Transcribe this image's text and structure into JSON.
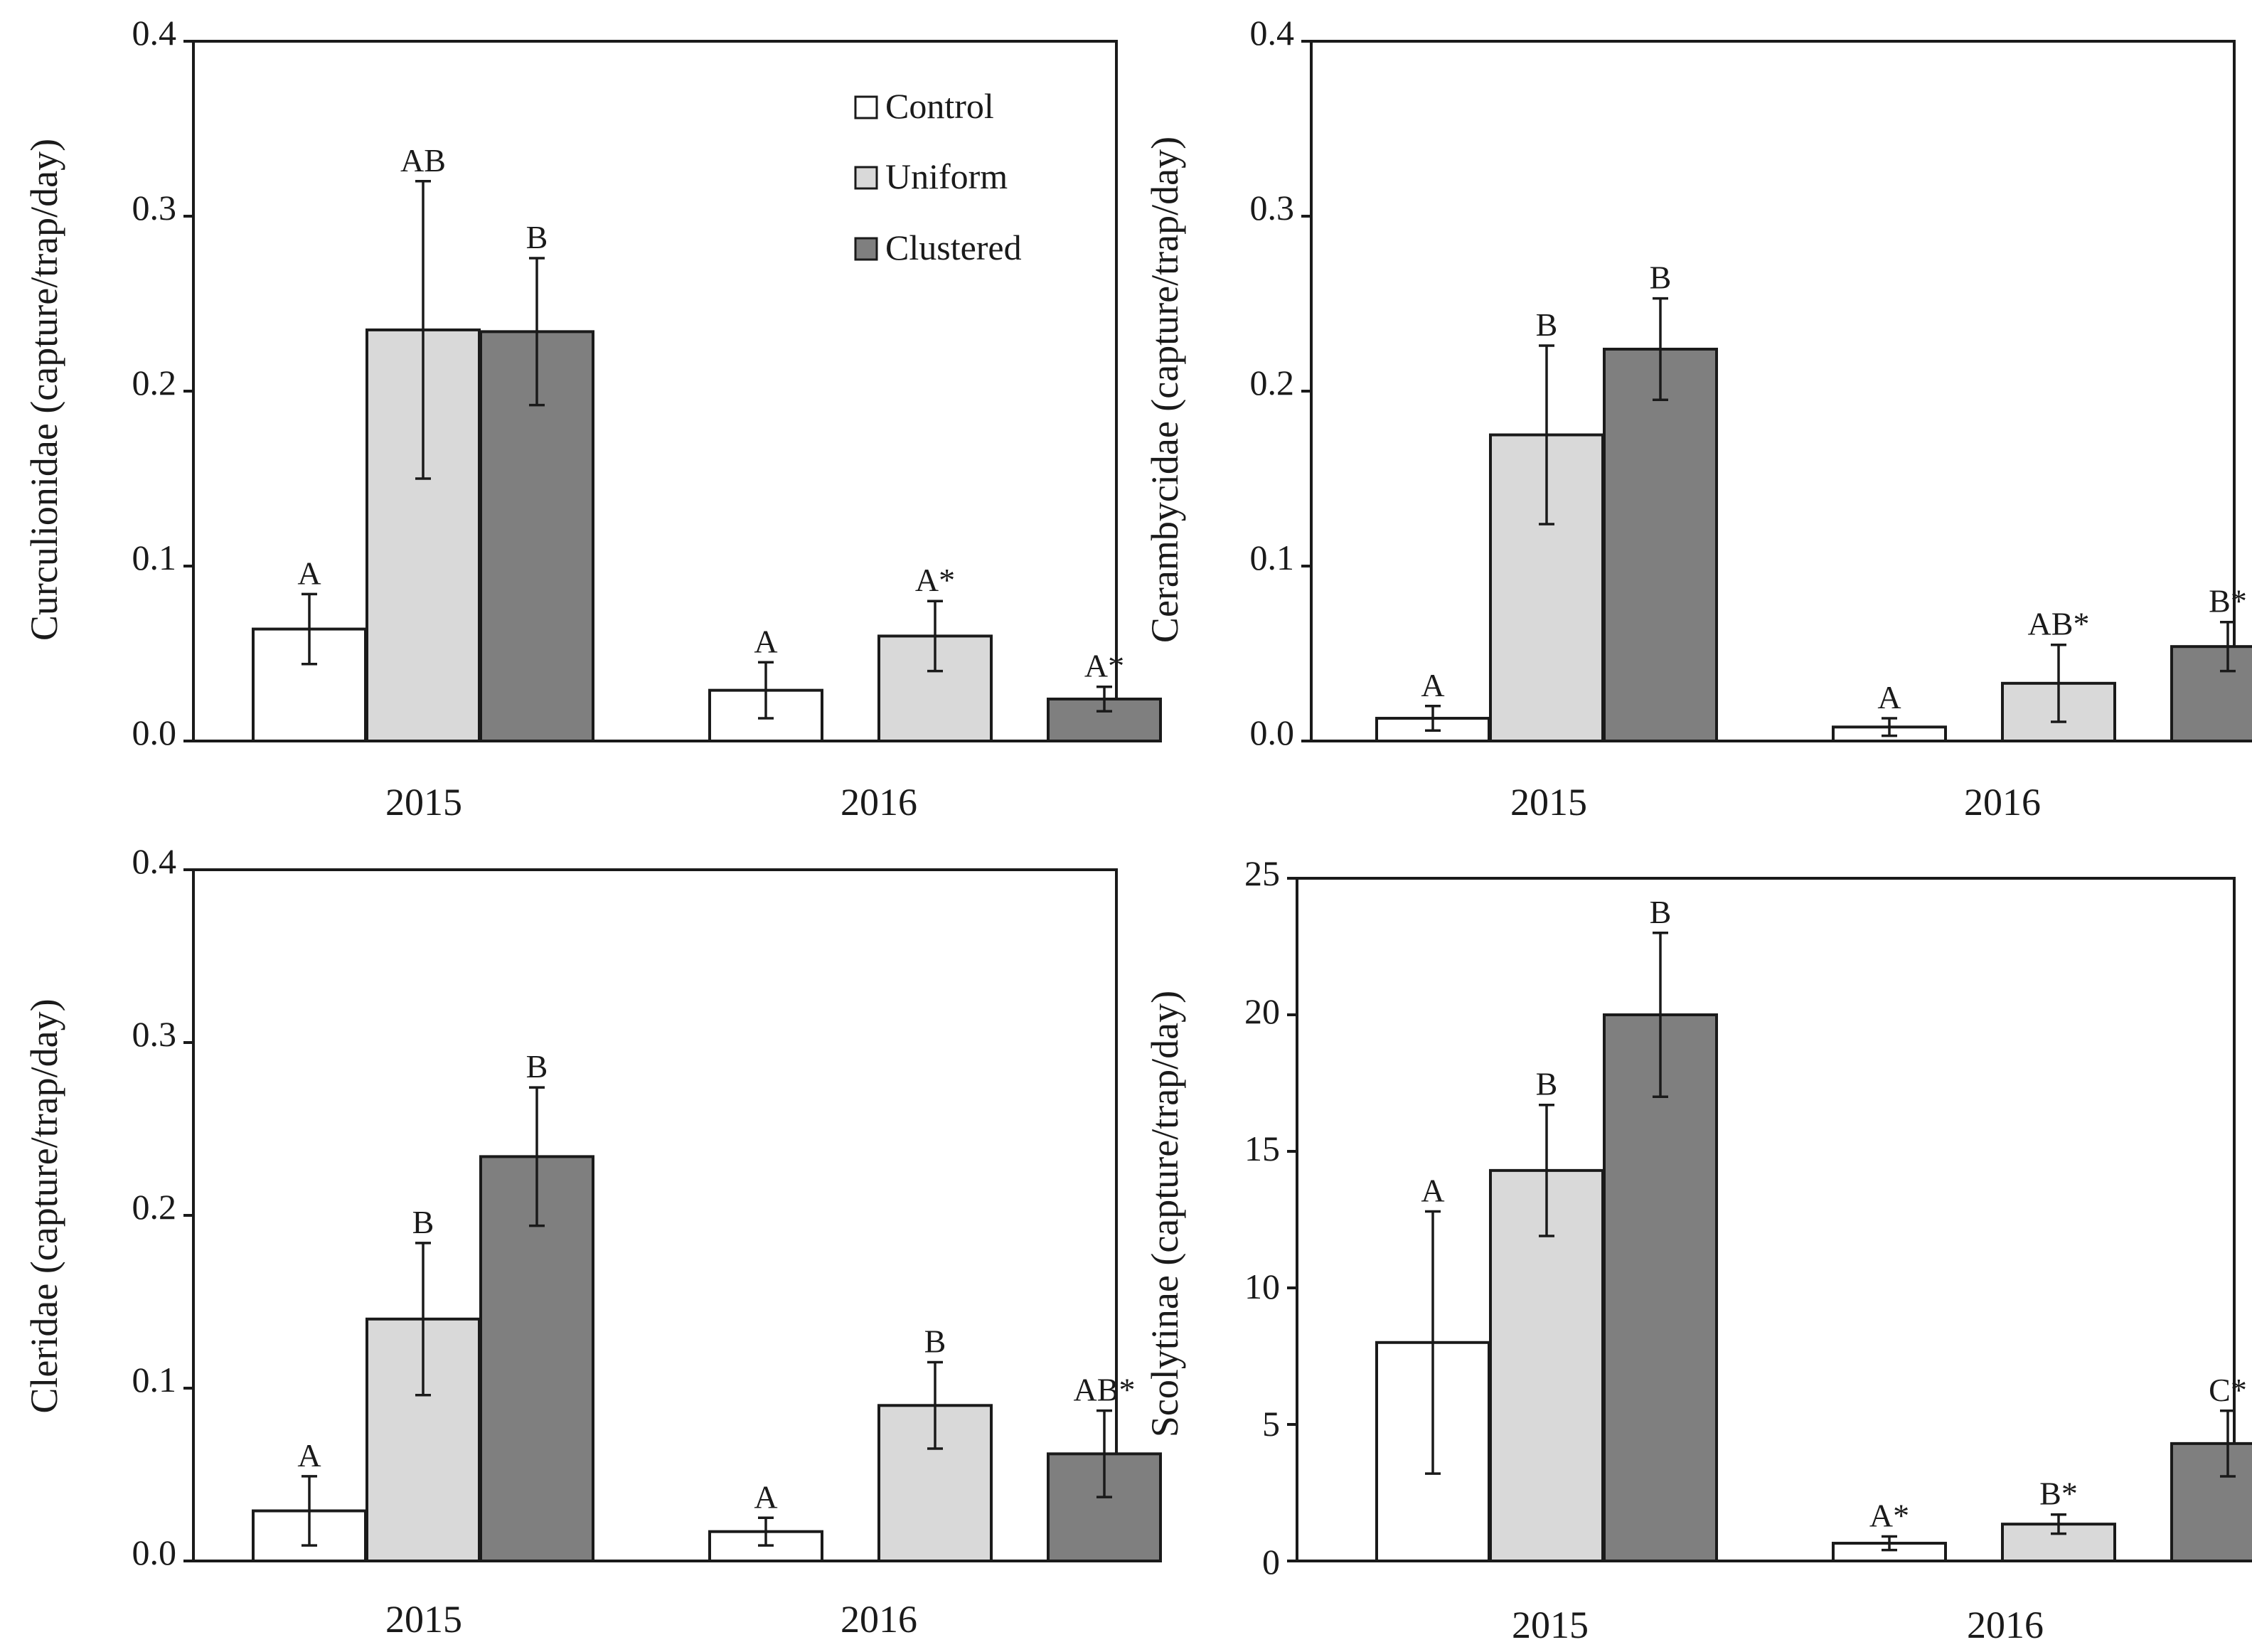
{
  "colors": {
    "control": "#ffffff",
    "uniform": "#d9d9d9",
    "clustered": "#7f7f7f",
    "stroke": "#1a1a1a"
  },
  "legend": {
    "entries": [
      {
        "label": "Control",
        "series": "control"
      },
      {
        "label": "Uniform",
        "series": "uniform"
      },
      {
        "label": "Clustered",
        "series": "clustered"
      }
    ]
  },
  "chart_data": [
    {
      "type": "bar",
      "panel": "top-left",
      "ylabel": "Curculionidae  (capture/trap/day)",
      "categories": [
        "2015",
        "2016"
      ],
      "ylim": [
        0,
        0.4
      ],
      "yticks": [
        "0.0",
        "0.1",
        "0.2",
        "0.3",
        "0.4"
      ],
      "legend_position": "top-right",
      "series": [
        {
          "name": "Control",
          "key": "control",
          "values": [
            0.064,
            0.029
          ],
          "errors": [
            0.02,
            0.016
          ],
          "labels": [
            "A",
            "A"
          ]
        },
        {
          "name": "Uniform",
          "key": "uniform",
          "values": [
            0.235,
            0.06
          ],
          "errors": [
            0.085,
            0.02
          ],
          "labels": [
            "AB",
            "A*"
          ]
        },
        {
          "name": "Clustered",
          "key": "clustered",
          "values": [
            0.234,
            0.024
          ],
          "errors": [
            0.042,
            0.007
          ],
          "labels": [
            "B",
            "A*"
          ]
        }
      ]
    },
    {
      "type": "bar",
      "panel": "top-right",
      "ylabel": "Cerambycidae  (capture/trap/day)",
      "categories": [
        "2015",
        "2016"
      ],
      "ylim": [
        0,
        0.4
      ],
      "yticks": [
        "0.0",
        "0.1",
        "0.2",
        "0.3",
        "0.4"
      ],
      "series": [
        {
          "name": "Control",
          "key": "control",
          "values": [
            0.013,
            0.008
          ],
          "errors": [
            0.007,
            0.005
          ],
          "labels": [
            "A",
            "A"
          ]
        },
        {
          "name": "Uniform",
          "key": "uniform",
          "values": [
            0.175,
            0.033
          ],
          "errors": [
            0.051,
            0.022
          ],
          "labels": [
            "B",
            "AB*"
          ]
        },
        {
          "name": "Clustered",
          "key": "clustered",
          "values": [
            0.224,
            0.054
          ],
          "errors": [
            0.029,
            0.014
          ],
          "labels": [
            "B",
            "B*"
          ]
        }
      ]
    },
    {
      "type": "bar",
      "panel": "bottom-left",
      "ylabel": "Cleridae (capture/trap/day)",
      "categories": [
        "2015",
        "2016"
      ],
      "ylim": [
        0,
        0.4
      ],
      "yticks": [
        "0.0",
        "0.1",
        "0.2",
        "0.3",
        "0.4"
      ],
      "series": [
        {
          "name": "Control",
          "key": "control",
          "values": [
            0.029,
            0.017
          ],
          "errors": [
            0.02,
            0.008
          ],
          "labels": [
            "A",
            "A"
          ]
        },
        {
          "name": "Uniform",
          "key": "uniform",
          "values": [
            0.14,
            0.09
          ],
          "errors": [
            0.044,
            0.025
          ],
          "labels": [
            "B",
            "B"
          ]
        },
        {
          "name": "Clustered",
          "key": "clustered",
          "values": [
            0.234,
            0.062
          ],
          "errors": [
            0.04,
            0.025
          ],
          "labels": [
            "B",
            "AB*"
          ]
        }
      ]
    },
    {
      "type": "bar",
      "panel": "bottom-right",
      "ylabel": "Scolytinae (capture/trap/day)",
      "categories": [
        "2015",
        "2016"
      ],
      "ylim": [
        0,
        25
      ],
      "yticks": [
        "0",
        "5",
        "10",
        "15",
        "20",
        "25"
      ],
      "series": [
        {
          "name": "Control",
          "key": "control",
          "values": [
            8.0,
            0.65
          ],
          "errors": [
            4.8,
            0.25
          ],
          "labels": [
            "A",
            "A*"
          ]
        },
        {
          "name": "Uniform",
          "key": "uniform",
          "values": [
            14.3,
            1.35
          ],
          "errors": [
            2.4,
            0.35
          ],
          "labels": [
            "B",
            "B*"
          ]
        },
        {
          "name": "Clustered",
          "key": "clustered",
          "values": [
            20.0,
            4.3
          ],
          "errors": [
            3.0,
            1.2
          ],
          "labels": [
            "B",
            "C*"
          ]
        }
      ]
    }
  ]
}
